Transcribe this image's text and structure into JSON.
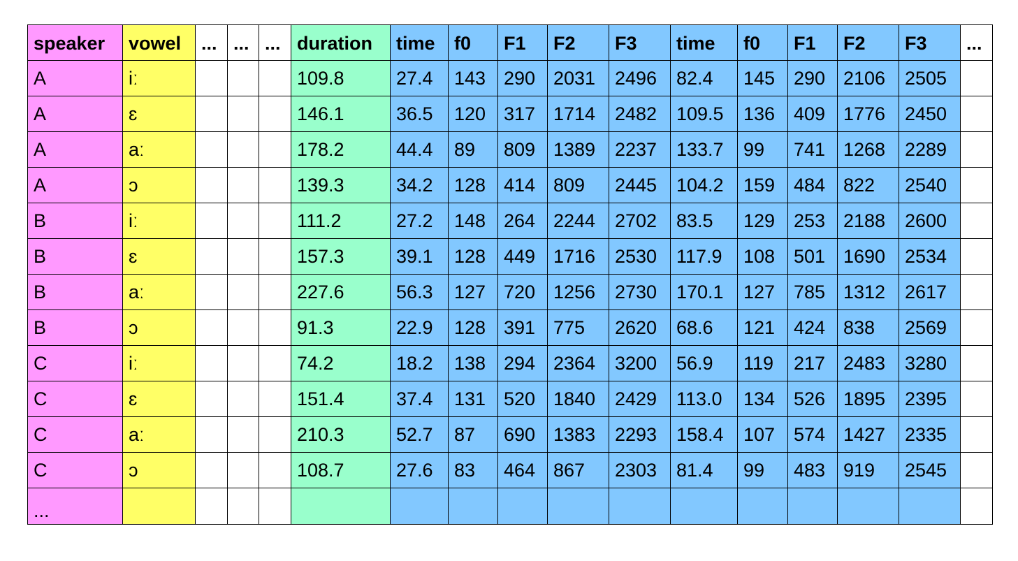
{
  "table": {
    "headers": [
      "speaker",
      "vowel",
      "...",
      "...",
      "...",
      "duration",
      "time",
      "f0",
      "F1",
      "F2",
      "F3",
      "time",
      "f0",
      "F1",
      "F2",
      "F3",
      "..."
    ],
    "rows": [
      [
        "A",
        "iː",
        "",
        "",
        "",
        "109.8",
        "27.4",
        "143",
        "290",
        "2031",
        "2496",
        "82.4",
        "145",
        "290",
        "2106",
        "2505",
        ""
      ],
      [
        "A",
        "ɛ",
        "",
        "",
        "",
        "146.1",
        "36.5",
        "120",
        "317",
        "1714",
        "2482",
        "109.5",
        "136",
        "409",
        "1776",
        "2450",
        ""
      ],
      [
        "A",
        "aː",
        "",
        "",
        "",
        "178.2",
        "44.4",
        "89",
        "809",
        "1389",
        "2237",
        "133.7",
        "99",
        "741",
        "1268",
        "2289",
        ""
      ],
      [
        "A",
        "ɔ",
        "",
        "",
        "",
        "139.3",
        "34.2",
        "128",
        "414",
        "809",
        "2445",
        "104.2",
        "159",
        "484",
        "822",
        "2540",
        ""
      ],
      [
        "B",
        "iː",
        "",
        "",
        "",
        "111.2",
        "27.2",
        "148",
        "264",
        "2244",
        "2702",
        "83.5",
        "129",
        "253",
        "2188",
        "2600",
        ""
      ],
      [
        "B",
        "ɛ",
        "",
        "",
        "",
        "157.3",
        "39.1",
        "128",
        "449",
        "1716",
        "2530",
        "117.9",
        "108",
        "501",
        "1690",
        "2534",
        ""
      ],
      [
        "B",
        "aː",
        "",
        "",
        "",
        "227.6",
        "56.3",
        "127",
        "720",
        "1256",
        "2730",
        "170.1",
        "127",
        "785",
        "1312",
        "2617",
        ""
      ],
      [
        "B",
        "ɔ",
        "",
        "",
        "",
        "91.3",
        "22.9",
        "128",
        "391",
        "775",
        "2620",
        "68.6",
        "121",
        "424",
        "838",
        "2569",
        ""
      ],
      [
        "C",
        "iː",
        "",
        "",
        "",
        "74.2",
        "18.2",
        "138",
        "294",
        "2364",
        "3200",
        "56.9",
        "119",
        "217",
        "2483",
        "3280",
        ""
      ],
      [
        "C",
        "ɛ",
        "",
        "",
        "",
        "151.4",
        "37.4",
        "131",
        "520",
        "1840",
        "2429",
        "113.0",
        "134",
        "526",
        "1895",
        "2395",
        ""
      ],
      [
        "C",
        "aː",
        "",
        "",
        "",
        "210.3",
        "52.7",
        "87",
        "690",
        "1383",
        "2293",
        "158.4",
        "107",
        "574",
        "1427",
        "2335",
        ""
      ],
      [
        "C",
        "ɔ",
        "",
        "",
        "",
        "108.7",
        "27.6",
        "83",
        "464",
        "867",
        "2303",
        "81.4",
        "99",
        "483",
        "919",
        "2545",
        ""
      ],
      [
        "...",
        "",
        "",
        "",
        "",
        "",
        "",
        "",
        "",
        "",
        "",
        "",
        "",
        "",
        "",
        "",
        ""
      ]
    ]
  },
  "colors": {
    "speaker": "#ff99ff",
    "vowel": "#ffff66",
    "blank": "#ffffff",
    "duration": "#99ffcc",
    "measure": "#82c8ff",
    "border": "#000000"
  }
}
